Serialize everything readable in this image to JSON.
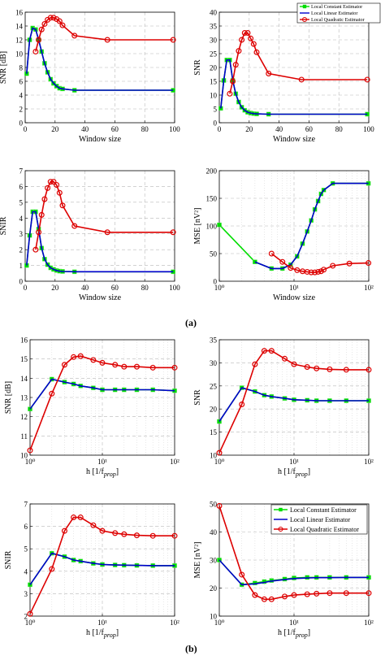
{
  "captions": {
    "a": "(a)",
    "b": "(b)"
  },
  "legend_labels": [
    "Local Constant Estimator",
    "Local Linear Estimator",
    "Local Quadratic Estimator"
  ],
  "colors": {
    "constant": "#00dd00",
    "linear": "#0000cc",
    "quadratic": "#dd0000"
  },
  "chart_data": [
    {
      "id": "a1",
      "type": "line",
      "xscale": "linear",
      "xlim": [
        0,
        100
      ],
      "ylim": [
        0,
        16
      ],
      "xticks": [
        0,
        20,
        40,
        60,
        80,
        100
      ],
      "yticks": [
        0,
        2,
        4,
        6,
        8,
        10,
        12,
        14,
        16
      ],
      "xticklabels": [
        "0",
        "20",
        "40",
        "60",
        "80",
        "100"
      ],
      "yticklabels": [
        "0",
        "2",
        "4",
        "6",
        "8",
        "10",
        "12",
        "14",
        "16"
      ],
      "xlabel": "Window size",
      "ylabel": "SNR [dB]",
      "grid": true,
      "legend": "",
      "series": [
        {
          "key": "constant",
          "x": [
            1,
            3,
            5,
            7,
            9,
            11,
            13,
            15,
            17,
            19,
            21,
            23,
            25,
            33,
            99
          ],
          "y": [
            7.1,
            12.0,
            13.7,
            13.5,
            12.0,
            10.3,
            8.6,
            7.3,
            6.3,
            5.7,
            5.3,
            5.0,
            4.9,
            4.7,
            4.7
          ]
        },
        {
          "key": "linear",
          "x": [
            1,
            3,
            5,
            7,
            9,
            11,
            13,
            15,
            17,
            19,
            21,
            23,
            25,
            33,
            99
          ],
          "y": [
            7.1,
            12.0,
            13.7,
            13.5,
            12.0,
            10.3,
            8.6,
            7.3,
            6.3,
            5.7,
            5.3,
            5.0,
            4.9,
            4.7,
            4.7
          ]
        },
        {
          "key": "quadratic",
          "x": [
            7,
            9,
            11,
            13,
            15,
            17,
            19,
            21,
            23,
            25,
            33,
            55,
            99
          ],
          "y": [
            10.3,
            12.0,
            13.5,
            14.3,
            14.9,
            15.2,
            15.2,
            15.0,
            14.7,
            14.1,
            12.6,
            12.0,
            12.0
          ]
        }
      ]
    },
    {
      "id": "a2",
      "type": "line",
      "xscale": "linear",
      "xlim": [
        0,
        100
      ],
      "ylim": [
        0,
        40
      ],
      "xticks": [
        0,
        20,
        40,
        60,
        80,
        100
      ],
      "yticks": [
        0,
        5,
        10,
        15,
        20,
        25,
        30,
        35,
        40
      ],
      "xticklabels": [
        "0",
        "20",
        "40",
        "60",
        "80",
        "100"
      ],
      "yticklabels": [
        "0",
        "5",
        "10",
        "15",
        "20",
        "25",
        "30",
        "35",
        "40"
      ],
      "xlabel": "Window size",
      "ylabel": "SNR",
      "grid": true,
      "legend": "top-right",
      "series": [
        {
          "key": "constant",
          "x": [
            1,
            3,
            5,
            7,
            9,
            11,
            13,
            15,
            17,
            19,
            21,
            23,
            25,
            33,
            99
          ],
          "y": [
            5.2,
            15.3,
            22.7,
            22.7,
            15.3,
            10.5,
            7.5,
            5.6,
            4.5,
            3.8,
            3.5,
            3.3,
            3.2,
            3.1,
            3.1
          ]
        },
        {
          "key": "linear",
          "x": [
            1,
            3,
            5,
            7,
            9,
            11,
            13,
            15,
            17,
            19,
            21,
            23,
            25,
            33,
            99
          ],
          "y": [
            5.2,
            15.3,
            22.7,
            22.7,
            15.3,
            10.5,
            7.5,
            5.6,
            4.5,
            3.8,
            3.5,
            3.3,
            3.2,
            3.1,
            3.1
          ]
        },
        {
          "key": "quadratic",
          "x": [
            7,
            9,
            11,
            13,
            15,
            17,
            19,
            21,
            23,
            25,
            33,
            55,
            99
          ],
          "y": [
            10.5,
            15.0,
            21.0,
            26.0,
            30.0,
            32.5,
            32.5,
            30.5,
            28.5,
            25.5,
            17.8,
            15.6,
            15.6
          ]
        }
      ]
    },
    {
      "id": "a3",
      "type": "line",
      "xscale": "linear",
      "xlim": [
        0,
        100
      ],
      "ylim": [
        0,
        7
      ],
      "xticks": [
        0,
        20,
        40,
        60,
        80,
        100
      ],
      "yticks": [
        0,
        1,
        2,
        3,
        4,
        5,
        6,
        7
      ],
      "xticklabels": [
        "0",
        "20",
        "40",
        "60",
        "80",
        "100"
      ],
      "yticklabels": [
        "0",
        "1",
        "2",
        "3",
        "4",
        "5",
        "6",
        "7"
      ],
      "xlabel": "Window size",
      "ylabel": "SNIR",
      "grid": true,
      "legend": "",
      "series": [
        {
          "key": "constant",
          "x": [
            1,
            3,
            5,
            7,
            9,
            11,
            13,
            15,
            17,
            19,
            21,
            23,
            25,
            33,
            99
          ],
          "y": [
            1.0,
            2.9,
            4.4,
            4.4,
            3.3,
            2.1,
            1.4,
            1.05,
            0.85,
            0.75,
            0.68,
            0.64,
            0.62,
            0.6,
            0.6
          ]
        },
        {
          "key": "linear",
          "x": [
            1,
            3,
            5,
            7,
            9,
            11,
            13,
            15,
            17,
            19,
            21,
            23,
            25,
            33,
            99
          ],
          "y": [
            1.0,
            2.9,
            4.4,
            4.4,
            3.3,
            2.1,
            1.4,
            1.05,
            0.85,
            0.75,
            0.68,
            0.64,
            0.62,
            0.6,
            0.6
          ]
        },
        {
          "key": "quadratic",
          "x": [
            7,
            9,
            11,
            13,
            15,
            17,
            19,
            21,
            23,
            25,
            33,
            55,
            99
          ],
          "y": [
            2.0,
            3.1,
            4.2,
            5.2,
            5.9,
            6.3,
            6.3,
            6.1,
            5.6,
            4.8,
            3.5,
            3.1,
            3.1
          ]
        }
      ]
    },
    {
      "id": "a4",
      "type": "line",
      "xscale": "log",
      "xlim": [
        1,
        100
      ],
      "ylim": [
        0,
        200
      ],
      "xticks": [
        1,
        10,
        100
      ],
      "yticks": [
        0,
        50,
        100,
        150,
        200
      ],
      "xticklabels": [
        "10⁰",
        "10¹",
        "10²"
      ],
      "yticklabels": [
        "0",
        "50",
        "100",
        "150",
        "200"
      ],
      "xlabel": "Window size",
      "ylabel": "MSE [nV²]",
      "grid": true,
      "legend": "",
      "series": [
        {
          "key": "constant",
          "x": [
            1,
            3,
            5,
            7,
            9,
            11,
            13,
            15,
            17,
            19,
            21,
            23,
            25,
            33,
            99
          ],
          "y": [
            102,
            35,
            23,
            23,
            30,
            45,
            68,
            90,
            110,
            130,
            145,
            158,
            165,
            177,
            177
          ]
        },
        {
          "key": "linear",
          "x": [
            3,
            5,
            7,
            9,
            11,
            13,
            15,
            17,
            19,
            21,
            23,
            25,
            33,
            99
          ],
          "y": [
            35,
            23,
            23,
            30,
            45,
            68,
            90,
            110,
            130,
            145,
            158,
            165,
            177,
            177
          ]
        },
        {
          "key": "quadratic",
          "x": [
            5,
            7,
            9,
            11,
            13,
            15,
            17,
            19,
            21,
            23,
            25,
            33,
            55,
            99
          ],
          "y": [
            50,
            35,
            24,
            20,
            18,
            17,
            16,
            16,
            17,
            18,
            21,
            28,
            32,
            33
          ]
        }
      ]
    },
    {
      "id": "b1",
      "type": "line",
      "xscale": "log",
      "xlim": [
        1,
        100
      ],
      "ylim": [
        10,
        16
      ],
      "xticks": [
        1,
        10,
        100
      ],
      "yticks": [
        10,
        11,
        12,
        13,
        14,
        15,
        16
      ],
      "xticklabels": [
        "10⁰",
        "10¹",
        "10²"
      ],
      "yticklabels": [
        "10",
        "11",
        "12",
        "13",
        "14",
        "15",
        "16"
      ],
      "xlabel": "h  [1/f_prop]",
      "ylabel": "SNR [dB]",
      "grid": true,
      "legend": "",
      "series": [
        {
          "key": "constant",
          "x": [
            1,
            2,
            3,
            4,
            5,
            7.5,
            10,
            15,
            20,
            30,
            50,
            100
          ],
          "y": [
            12.4,
            13.95,
            13.8,
            13.7,
            13.6,
            13.5,
            13.4,
            13.4,
            13.4,
            13.4,
            13.4,
            13.35
          ]
        },
        {
          "key": "linear",
          "x": [
            1,
            2,
            3,
            4,
            5,
            7.5,
            10,
            15,
            20,
            30,
            50,
            100
          ],
          "y": [
            12.4,
            13.95,
            13.8,
            13.7,
            13.6,
            13.5,
            13.4,
            13.4,
            13.4,
            13.4,
            13.4,
            13.35
          ]
        },
        {
          "key": "quadratic",
          "x": [
            1,
            2,
            3,
            4,
            5,
            7.5,
            10,
            15,
            20,
            30,
            50,
            100
          ],
          "y": [
            10.25,
            13.2,
            14.7,
            15.1,
            15.15,
            14.95,
            14.8,
            14.7,
            14.6,
            14.6,
            14.55,
            14.55
          ]
        }
      ]
    },
    {
      "id": "b2",
      "type": "line",
      "xscale": "log",
      "xlim": [
        1,
        100
      ],
      "ylim": [
        10,
        35
      ],
      "xticks": [
        1,
        10,
        100
      ],
      "yticks": [
        10,
        15,
        20,
        25,
        30,
        35
      ],
      "xticklabels": [
        "10⁰",
        "10¹",
        "10²"
      ],
      "yticklabels": [
        "10",
        "15",
        "20",
        "25",
        "30",
        "35"
      ],
      "xlabel": "h  [1/f_prop]",
      "ylabel": "SNR",
      "grid": true,
      "legend": "",
      "series": [
        {
          "key": "constant",
          "x": [
            1,
            2,
            3,
            4,
            5,
            7.5,
            10,
            15,
            20,
            30,
            50,
            100
          ],
          "y": [
            17.3,
            24.6,
            23.8,
            23.0,
            22.7,
            22.3,
            22.0,
            21.9,
            21.8,
            21.8,
            21.8,
            21.8
          ]
        },
        {
          "key": "linear",
          "x": [
            1,
            2,
            3,
            4,
            5,
            7.5,
            10,
            15,
            20,
            30,
            50,
            100
          ],
          "y": [
            17.3,
            24.6,
            23.8,
            23.0,
            22.7,
            22.3,
            22.0,
            21.9,
            21.8,
            21.8,
            21.8,
            21.8
          ]
        },
        {
          "key": "quadratic",
          "x": [
            1,
            2,
            3,
            4,
            5,
            7.5,
            10,
            15,
            20,
            30,
            50,
            100
          ],
          "y": [
            10.5,
            21.0,
            29.7,
            32.6,
            32.6,
            30.9,
            29.7,
            29.1,
            28.8,
            28.6,
            28.5,
            28.5
          ]
        }
      ]
    },
    {
      "id": "b3",
      "type": "line",
      "xscale": "log",
      "xlim": [
        1,
        100
      ],
      "ylim": [
        2,
        7
      ],
      "xticks": [
        1,
        10,
        100
      ],
      "yticks": [
        2,
        3,
        4,
        5,
        6,
        7
      ],
      "xticklabels": [
        "10⁰",
        "10¹",
        "10²"
      ],
      "yticklabels": [
        "2",
        "3",
        "4",
        "5",
        "6",
        "7"
      ],
      "xlabel": "h  [1/f_prop]",
      "ylabel": "SNIR",
      "grid": true,
      "legend": "",
      "series": [
        {
          "key": "constant",
          "x": [
            1,
            2,
            3,
            4,
            5,
            7.5,
            10,
            15,
            20,
            30,
            50,
            100
          ],
          "y": [
            3.4,
            4.8,
            4.65,
            4.5,
            4.45,
            4.35,
            4.3,
            4.28,
            4.27,
            4.26,
            4.25,
            4.25
          ]
        },
        {
          "key": "linear",
          "x": [
            1,
            2,
            3,
            4,
            5,
            7.5,
            10,
            15,
            20,
            30,
            50,
            100
          ],
          "y": [
            3.4,
            4.8,
            4.65,
            4.5,
            4.45,
            4.35,
            4.3,
            4.28,
            4.27,
            4.26,
            4.25,
            4.25
          ]
        },
        {
          "key": "quadratic",
          "x": [
            1,
            2,
            3,
            4,
            5,
            7.5,
            10,
            15,
            20,
            30,
            50,
            100
          ],
          "y": [
            2.1,
            4.1,
            5.8,
            6.4,
            6.4,
            6.05,
            5.8,
            5.7,
            5.65,
            5.6,
            5.58,
            5.58
          ]
        }
      ]
    },
    {
      "id": "b4",
      "type": "line",
      "xscale": "log",
      "xlim": [
        1,
        100
      ],
      "ylim": [
        10,
        50
      ],
      "xticks": [
        1,
        10,
        100
      ],
      "yticks": [
        10,
        20,
        30,
        40,
        50
      ],
      "xticklabels": [
        "10⁰",
        "10¹",
        "10²"
      ],
      "yticklabels": [
        "10",
        "20",
        "30",
        "40",
        "50"
      ],
      "xlabel": "h  [1/f_prop]",
      "ylabel": "MSE [nV²]",
      "grid": true,
      "legend": "top-right",
      "series": [
        {
          "key": "constant",
          "x": [
            1,
            2,
            3,
            4,
            5,
            7.5,
            10,
            15,
            20,
            30,
            50,
            100
          ],
          "y": [
            30.0,
            21.2,
            21.8,
            22.3,
            22.7,
            23.2,
            23.6,
            23.8,
            23.8,
            23.8,
            23.8,
            23.8
          ]
        },
        {
          "key": "linear",
          "x": [
            1,
            2,
            3,
            4,
            5,
            7.5,
            10,
            15,
            20,
            30,
            50,
            100
          ],
          "y": [
            30.0,
            21.2,
            21.5,
            22.0,
            22.5,
            23.0,
            23.4,
            23.6,
            23.7,
            23.7,
            23.8,
            23.8
          ]
        },
        {
          "key": "quadratic",
          "x": [
            1,
            2,
            3,
            4,
            5,
            7.5,
            10,
            15,
            20,
            30,
            50,
            100
          ],
          "y": [
            49.3,
            24.8,
            17.5,
            16.0,
            16.0,
            17.0,
            17.5,
            17.8,
            18.0,
            18.2,
            18.2,
            18.2
          ]
        }
      ]
    }
  ]
}
